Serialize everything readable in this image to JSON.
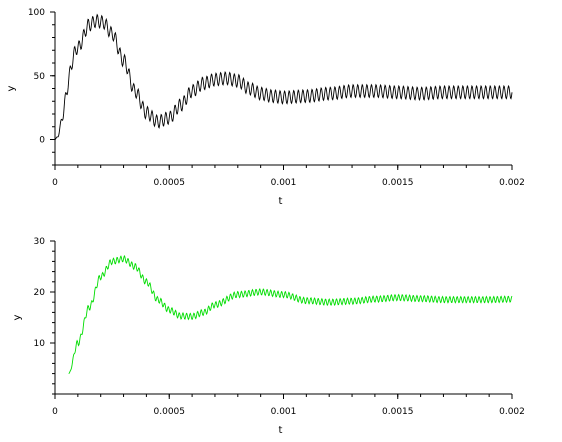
{
  "chart_data": [
    {
      "type": "line",
      "xlabel": "t",
      "ylabel": "y",
      "xlim": [
        0,
        0.002
      ],
      "ylim": [
        -20,
        100
      ],
      "x_ticks": [
        0,
        0.0005,
        0.001,
        0.0015,
        0.002
      ],
      "x_tick_labels": [
        "0",
        "0.0005",
        "0.001",
        "0.0015",
        "0.002"
      ],
      "y_ticks": [
        0,
        50,
        100
      ],
      "y_tick_labels": [
        "0",
        "50",
        "100"
      ],
      "series": [
        {
          "color": "#000000",
          "x": [
            0,
            0.0001,
            0.00015,
            0.00018,
            0.00021,
            0.00025,
            0.0003,
            0.00035,
            0.0004,
            0.00045,
            0.0005,
            0.00055,
            0.0006,
            0.00065,
            0.0007,
            0.00075,
            0.0008,
            0.00085,
            0.0009,
            0.00095,
            0.001,
            0.0011,
            0.0012,
            0.0013,
            0.0014,
            0.0015,
            0.0016,
            0.0017,
            0.0018,
            0.0019,
            0.002
          ],
          "y": [
            0,
            72,
            90,
            93,
            92,
            83,
            62,
            38,
            21,
            14,
            17,
            27,
            38,
            44,
            47,
            48,
            46,
            40,
            36,
            34,
            33,
            34,
            36,
            38,
            38,
            37,
            36,
            37,
            37,
            37,
            37
          ],
          "ripple_amplitude": 5,
          "ripple_period": 2e-05
        }
      ]
    },
    {
      "type": "line",
      "xlabel": "t",
      "ylabel": "y",
      "xlim": [
        0,
        0.002
      ],
      "ylim": [
        0,
        30
      ],
      "x_ticks": [
        0,
        0.0005,
        0.001,
        0.0015,
        0.002
      ],
      "x_tick_labels": [
        "0",
        "0.0005",
        "0.001",
        "0.0015",
        "0.002"
      ],
      "y_ticks": [
        10,
        20,
        30
      ],
      "y_tick_labels": [
        "10",
        "20",
        "30"
      ],
      "series": [
        {
          "color": "#00dd00",
          "x": [
            6e-05,
            0.0001,
            0.00015,
            0.0002,
            0.00025,
            0.0003,
            0.00035,
            0.0004,
            0.00045,
            0.0005,
            0.00055,
            0.0006,
            0.00065,
            0.0007,
            0.0008,
            0.0009,
            0.001,
            0.0011,
            0.0012,
            0.0013,
            0.0014,
            0.0015,
            0.0016,
            0.0017,
            0.0018,
            0.0019,
            0.002
          ],
          "y": [
            4,
            10,
            17,
            23,
            26,
            26.5,
            25,
            22,
            18.5,
            16.5,
            15.3,
            15.2,
            16,
            17.5,
            19.5,
            20,
            19.5,
            18.3,
            18,
            18.2,
            18.6,
            18.9,
            18.7,
            18.5,
            18.5,
            18.5,
            18.6
          ],
          "ripple_amplitude": 0.6,
          "ripple_period": 1.6e-05
        }
      ]
    }
  ]
}
